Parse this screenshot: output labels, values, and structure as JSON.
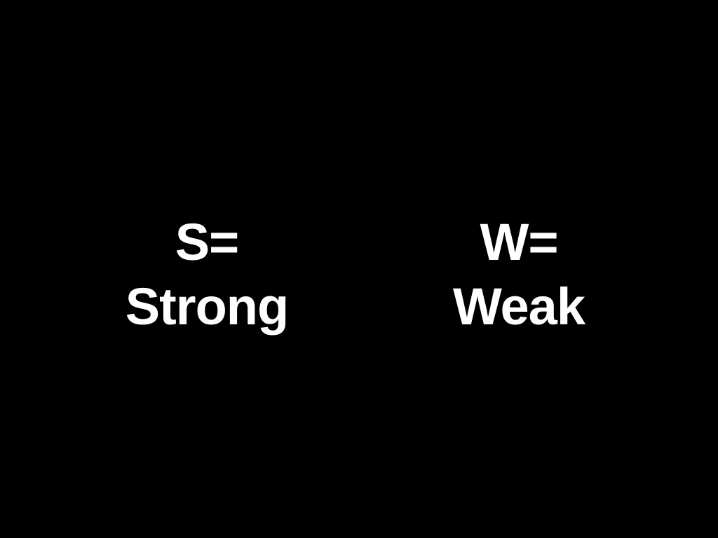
{
  "slide": {
    "background_color": "#000000",
    "text_color": "#ffffff",
    "columns": [
      {
        "key": "S=",
        "meaning": "Strong"
      },
      {
        "key": "W=",
        "meaning": "Weak"
      }
    ]
  }
}
